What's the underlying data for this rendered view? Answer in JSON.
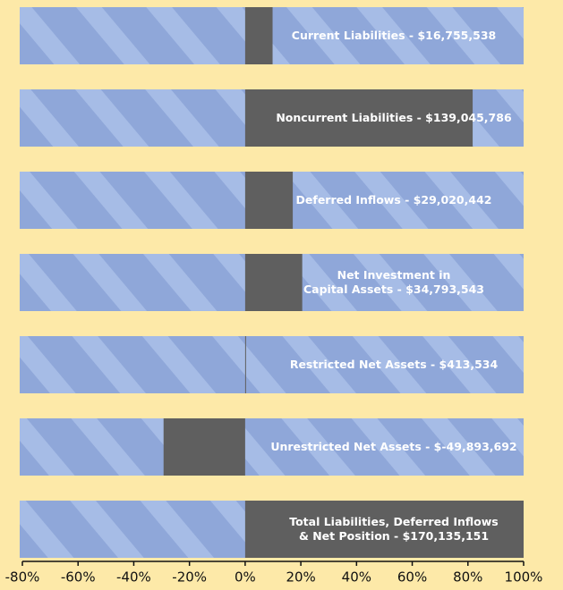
{
  "chart_data": {
    "type": "bar",
    "orientation": "horizontal",
    "categories": [
      [
        "Current Liabilities - $16,755,538"
      ],
      [
        "Noncurrent Liabilities - $139,045,786"
      ],
      [
        "Deferred Inflows - $29,020,442"
      ],
      [
        "Net Investment in",
        "Capital Assets - $34,793,543"
      ],
      [
        "Restricted Net Assets - $413,534"
      ],
      [
        "Unrestricted Net Assets - $-49,893,692"
      ],
      [
        "Total Liabilities, Deferred Inflows",
        "& Net Position - $170,135,151"
      ]
    ],
    "values": [
      9.85,
      81.7,
      17.1,
      20.5,
      0.24,
      -29.3,
      100
    ],
    "color": "#5f5f5f",
    "xlim": [
      -80,
      100
    ],
    "xticks": [
      {
        "value": -80,
        "label": "-80%"
      },
      {
        "value": -60,
        "label": "-60%"
      },
      {
        "value": -40,
        "label": "-40%"
      },
      {
        "value": -20,
        "label": "-20%"
      },
      {
        "value": 0,
        "label": "0%"
      },
      {
        "value": 20,
        "label": "20%"
      },
      {
        "value": 40,
        "label": "40%"
      },
      {
        "value": 60,
        "label": "60%"
      },
      {
        "value": 80,
        "label": "80%"
      },
      {
        "value": 100,
        "label": "100%"
      }
    ]
  }
}
